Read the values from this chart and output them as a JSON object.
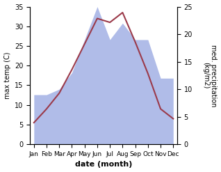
{
  "months": [
    "Jan",
    "Feb",
    "Mar",
    "Apr",
    "May",
    "Jun",
    "Jul",
    "Aug",
    "Sep",
    "Oct",
    "Nov",
    "Dec"
  ],
  "temperature": [
    5.5,
    9.0,
    13.0,
    19.0,
    25.5,
    32.0,
    31.0,
    33.5,
    26.0,
    18.0,
    9.0,
    6.5
  ],
  "precipitation": [
    9,
    9,
    10,
    13,
    19,
    25,
    19,
    22,
    19,
    19,
    12,
    12
  ],
  "temp_color": "#9b3a4a",
  "precip_color": "#b0bce8",
  "background_color": "#ffffff",
  "xlabel": "date (month)",
  "ylabel_left": "max temp (C)",
  "ylabel_right": "med. precipitation\n(kg/m2)",
  "ylim_left": [
    0,
    35
  ],
  "ylim_right": [
    0,
    25
  ],
  "yticks_left": [
    0,
    5,
    10,
    15,
    20,
    25,
    30,
    35
  ],
  "yticks_right": [
    0,
    5,
    10,
    15,
    20,
    25
  ],
  "figsize": [
    3.18,
    2.47
  ],
  "dpi": 100
}
